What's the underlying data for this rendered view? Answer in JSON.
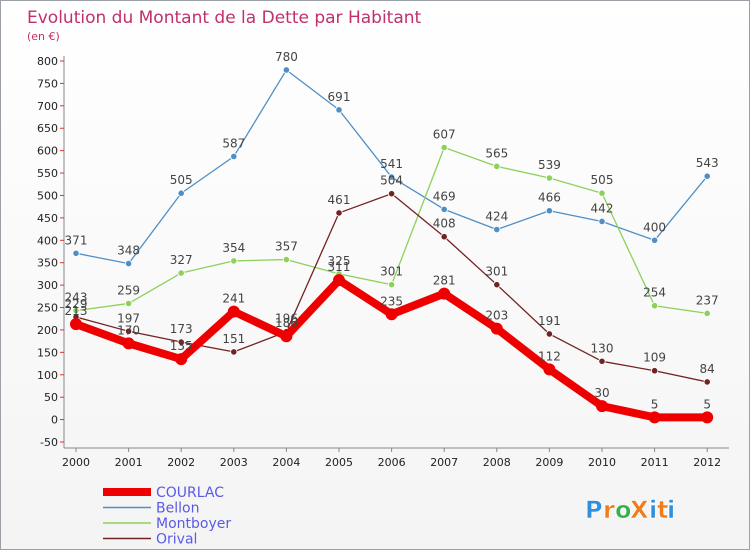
{
  "chart_data": {
    "type": "line",
    "title": "Evolution du Montant de la Dette par Habitant",
    "subtitle": "(en €)",
    "x": [
      "2000",
      "2001",
      "2002",
      "2003",
      "2004",
      "2005",
      "2006",
      "2007",
      "2008",
      "2009",
      "2010",
      "2011",
      "2012"
    ],
    "ylim": [
      -50,
      800
    ],
    "yticks": [
      -50,
      0,
      50,
      100,
      150,
      200,
      250,
      300,
      350,
      400,
      450,
      500,
      550,
      600,
      650,
      700,
      750,
      800
    ],
    "grid": false,
    "legend_position": "bottom-left",
    "series": [
      {
        "name": "Bellon",
        "color": "#4f8fc5",
        "values": [
          371,
          348,
          505,
          587,
          780,
          691,
          541,
          469,
          424,
          466,
          442,
          400,
          543
        ]
      },
      {
        "name": "Montboyer",
        "color": "#8ed05c",
        "values": [
          243,
          259,
          327,
          354,
          357,
          325,
          301,
          607,
          565,
          539,
          505,
          254,
          237
        ]
      },
      {
        "name": "Orival",
        "color": "#722222",
        "values": [
          229,
          197,
          173,
          151,
          196,
          461,
          504,
          408,
          301,
          191,
          130,
          109,
          84
        ]
      },
      {
        "name": "COURLAC",
        "color": "#ee0000",
        "values": [
          213,
          170,
          135,
          241,
          186,
          311,
          235,
          281,
          203,
          112,
          30,
          5,
          5
        ]
      }
    ],
    "legend_order": [
      "COURLAC",
      "Bellon",
      "Montboyer",
      "Orival"
    ]
  },
  "logo": {
    "text": "ProXiti",
    "letters": [
      "P",
      "r",
      "o",
      "X",
      "i",
      "t",
      "i"
    ],
    "colors": [
      "#2f8fdc",
      "#ef7d1a",
      "#35b34a",
      "#ef7d1a",
      "#2f8fdc",
      "#ef7d1a",
      "#2f8fdc"
    ]
  }
}
